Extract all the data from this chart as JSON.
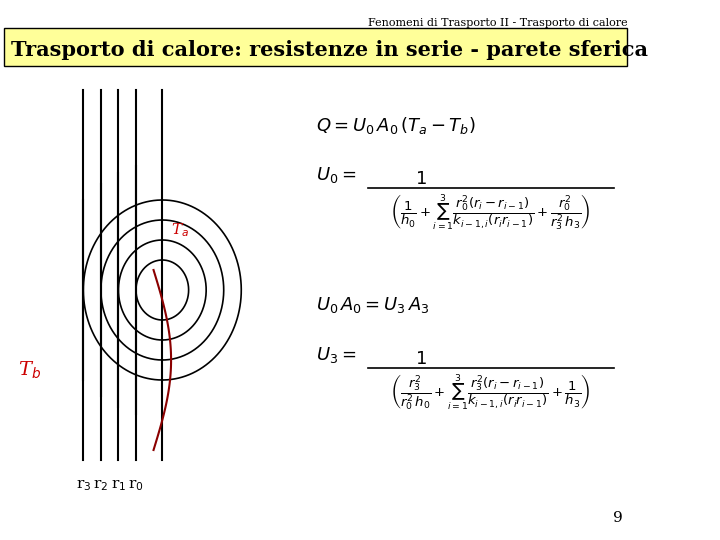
{
  "header_text": "Fenomeni di Trasporto II - Trasporto di calore",
  "title_text": "Trasporto di calore: resistenze in serie - parete sferica",
  "title_bg": "#ffff99",
  "background": "#ffffff",
  "header_fontsize": 8,
  "title_fontsize": 15,
  "page_number": "9",
  "Ta_label": "T$_a$",
  "Tb_label": "T$_b$",
  "radii_labels": [
    "r$_3$",
    "r$_2$",
    "r$_1$",
    "r$_0$"
  ],
  "eq1": "$Q = U_0\\, A_0\\, (T_a - T_b)$",
  "eq2_lhs": "$U_0 =$",
  "eq2_num": "$1$",
  "eq2_den": "$\\left(\\dfrac{1}{h_0} + \\sum_{i=1}^{3}\\dfrac{r_0^{\\,2}(r_i - r_{i-1})}{k_{i-1,i}(r_i r_{i-1})} + \\dfrac{r_0^{\\,2}}{r_3^{\\,2}\\,h_3}\\right)$",
  "eq3": "$U_0\\, A_0 = U_3\\, A_3$",
  "eq4_lhs": "$U_3 =$",
  "eq4_num": "$1$",
  "eq4_den": "$\\left(\\dfrac{r_3^{\\,2}}{r_0^{\\,2}\\,h_0} + \\sum_{i=1}^{3}\\dfrac{r_3^{\\,2}(r_i - r_{i-1})}{k_{i-1,i}(r_i r_{i-1})} + \\dfrac{1}{h_3}\\right)$"
}
